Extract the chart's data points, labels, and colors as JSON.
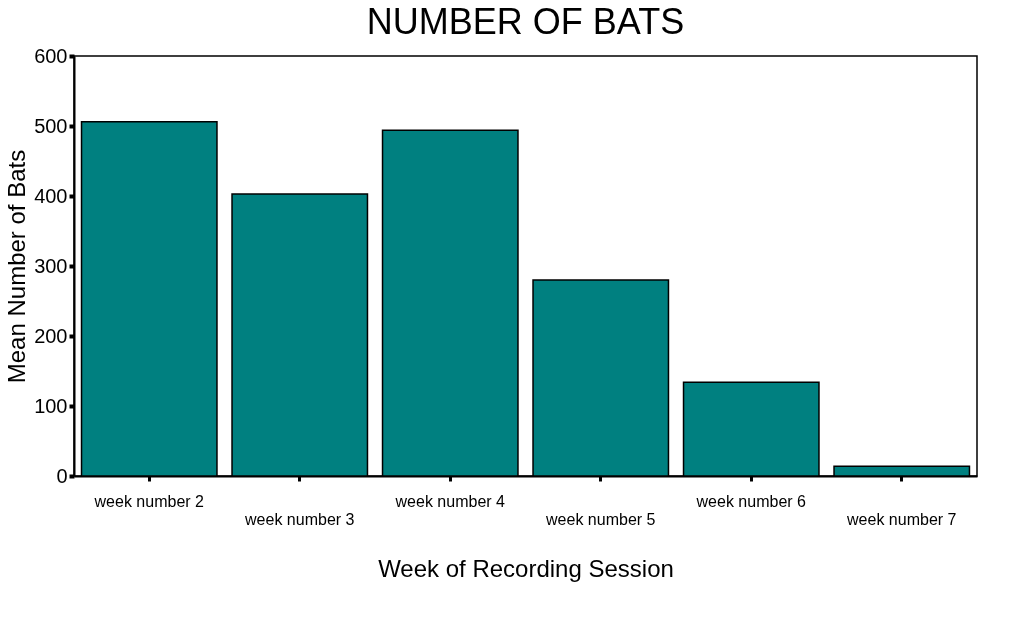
{
  "chart_data": {
    "type": "bar",
    "title": "NUMBER OF BATS",
    "xlabel": "Week of Recording Session",
    "ylabel": "Mean Number of Bats",
    "categories": [
      "week number 2",
      "week number 3",
      "week number 4",
      "week number 5",
      "week number 6",
      "week number 7"
    ],
    "values": [
      506,
      403,
      494,
      280,
      134,
      14
    ],
    "color": "#008080",
    "ylim": [
      0,
      600
    ],
    "yticks": [
      0,
      100,
      200,
      300,
      400,
      500,
      600
    ],
    "grid": false
  }
}
